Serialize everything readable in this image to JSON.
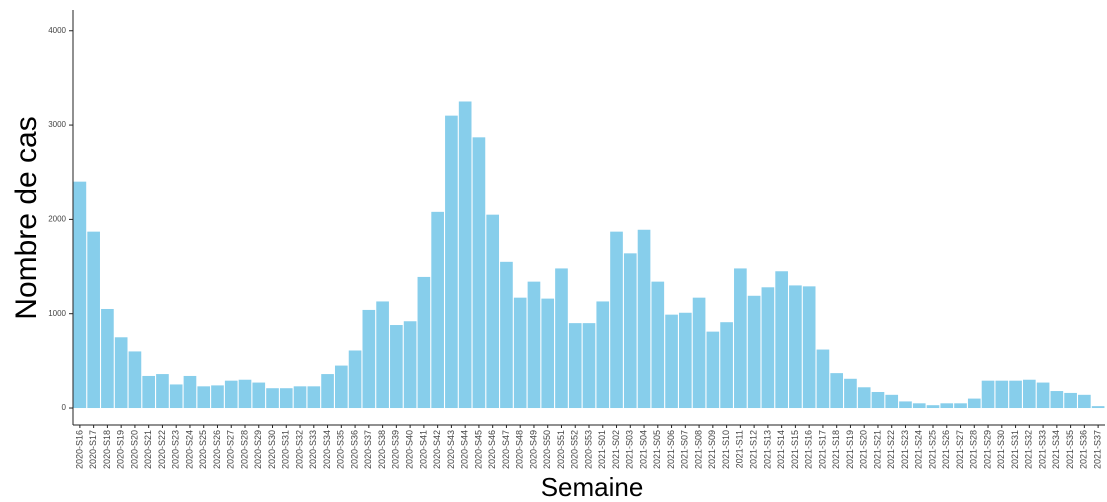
{
  "chart_data": {
    "type": "bar",
    "x_label": "Semaine",
    "y_label": "Nombre de cas",
    "categories": [
      "2020-S16",
      "2020-S17",
      "2020-S18",
      "2020-S19",
      "2020-S20",
      "2020-S21",
      "2020-S22",
      "2020-S23",
      "2020-S24",
      "2020-S25",
      "2020-S26",
      "2020-S27",
      "2020-S28",
      "2020-S29",
      "2020-S30",
      "2020-S31",
      "2020-S32",
      "2020-S33",
      "2020-S34",
      "2020-S35",
      "2020-S36",
      "2020-S37",
      "2020-S38",
      "2020-S39",
      "2020-S40",
      "2020-S41",
      "2020-S42",
      "2020-S43",
      "2020-S44",
      "2020-S45",
      "2020-S46",
      "2020-S47",
      "2020-S48",
      "2020-S49",
      "2020-S50",
      "2020-S51",
      "2020-S52",
      "2020-S53",
      "2021-S01",
      "2021-S02",
      "2021-S03",
      "2021-S04",
      "2021-S05",
      "2021-S06",
      "2021-S07",
      "2021-S08",
      "2021-S09",
      "2021-S10",
      "2021-S11",
      "2021-S12",
      "2021-S13",
      "2021-S14",
      "2021-S15",
      "2021-S16",
      "2021-S17",
      "2021-S18",
      "2021-S19",
      "2021-S20",
      "2021-S21",
      "2021-S22",
      "2021-S23",
      "2021-S24",
      "2021-S25",
      "2021-S26",
      "2021-S27",
      "2021-S28",
      "2021-S29",
      "2021-S30",
      "2021-S31",
      "2021-S32",
      "2021-S33",
      "2021-S34",
      "2021-S35",
      "2021-S36",
      "2021-S37"
    ],
    "values": [
      2400,
      1870,
      1050,
      750,
      600,
      340,
      360,
      250,
      340,
      230,
      240,
      290,
      300,
      270,
      210,
      210,
      230,
      230,
      360,
      450,
      610,
      1040,
      1130,
      880,
      920,
      1390,
      2080,
      3100,
      3250,
      2870,
      2050,
      1550,
      1170,
      1340,
      1160,
      1480,
      900,
      900,
      1130,
      1870,
      1640,
      1890,
      1340,
      990,
      1010,
      1170,
      810,
      910,
      1480,
      1190,
      1280,
      1450,
      1300,
      1290,
      620,
      370,
      310,
      220,
      170,
      140,
      70,
      50,
      30,
      50,
      50,
      100,
      290,
      290,
      290,
      300,
      270,
      180,
      160,
      140,
      20
    ],
    "color": "#87ceeb",
    "ylim": [
      -180,
      4220
    ],
    "yticks": [
      0,
      1000,
      2000,
      3000,
      4000
    ],
    "grid": false
  }
}
